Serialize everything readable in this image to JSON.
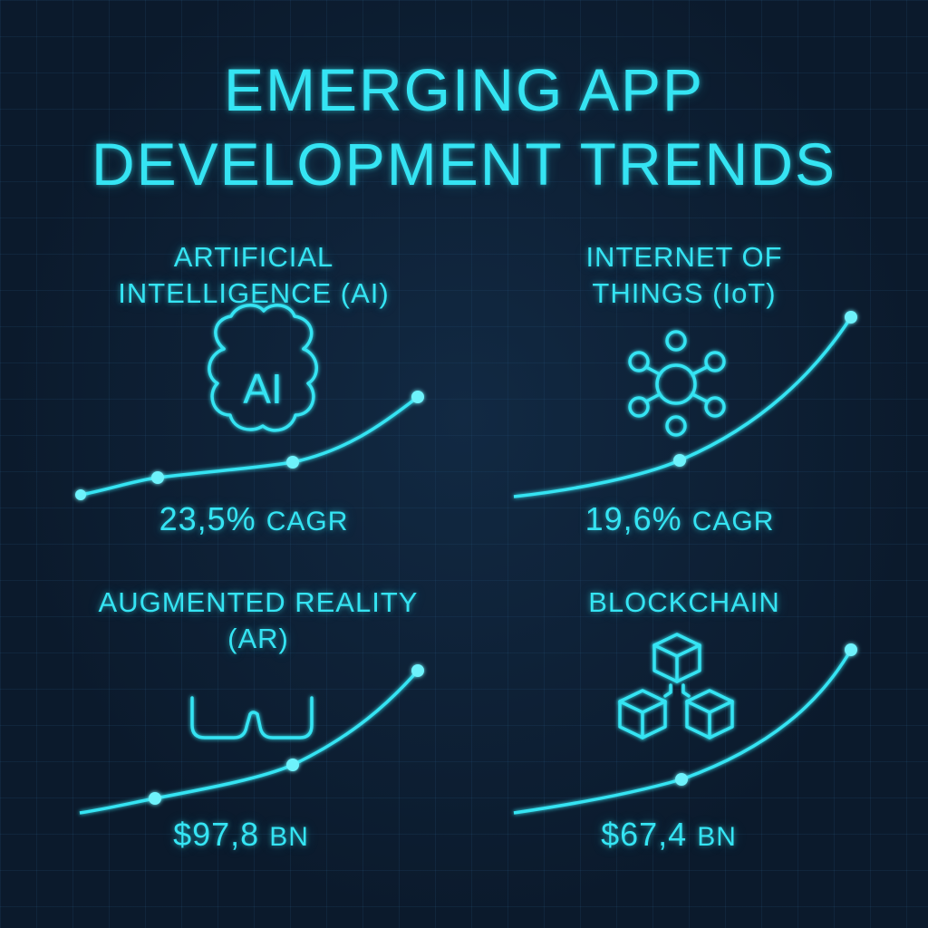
{
  "title": {
    "line1": "EMERGING APP",
    "line2": "DEVELOPMENT TRENDS"
  },
  "colors": {
    "background": "#0b1a2c",
    "accent": "#35e4f3",
    "grid": "#1c3a57"
  },
  "trends": [
    {
      "id": "ai",
      "heading_line1": "ARTIFICIAL",
      "heading_line2": "INTELLIGENCE  (AI)",
      "icon": "brain-icon",
      "icon_label": "AI",
      "value": "23,5%",
      "unit": "CAGR"
    },
    {
      "id": "iot",
      "heading_line1": "INTERNET OF",
      "heading_line2": "THINGS (IoT)",
      "icon": "network-hub-icon",
      "value": "19,6%",
      "unit": "CAGR"
    },
    {
      "id": "ar",
      "heading_line1": "AUGMENTED REALITY",
      "heading_line2": "(AR)",
      "icon": "ar-glasses-icon",
      "value": "$97,8",
      "unit": "BN"
    },
    {
      "id": "blockchain",
      "heading_line1": "BLOCKCHAIN",
      "heading_line2": "",
      "icon": "cubes-icon",
      "value": "$67,4",
      "unit": "BN"
    }
  ]
}
